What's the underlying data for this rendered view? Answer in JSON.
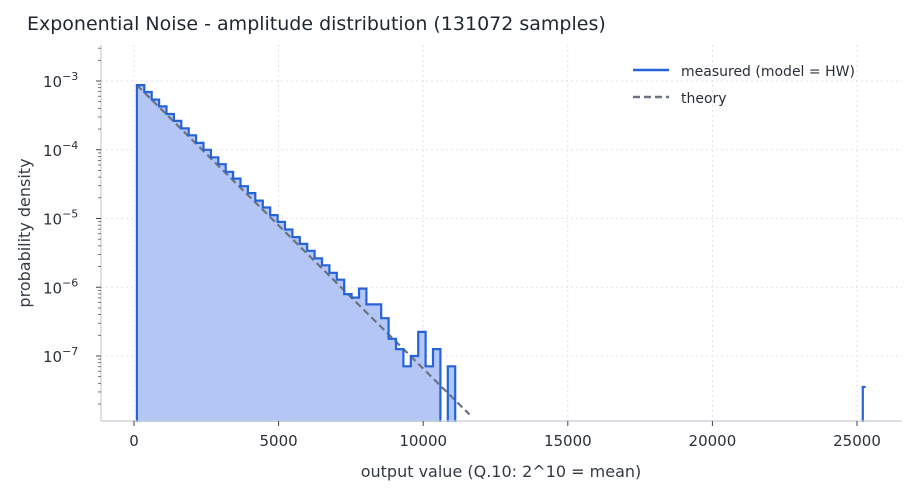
{
  "chart_data": {
    "type": "line",
    "title": "Exponential Noise - amplitude distribution (131072 samples)",
    "xlabel": "output value (Q.10: 2^10 = mean)",
    "ylabel": "probability density",
    "xlim": [
      -1200,
      26500
    ],
    "ylim_log10": [
      -7.8,
      -2.5
    ],
    "yscale": "log",
    "grid": true,
    "legend_position": "top-right",
    "x_ticks": [
      0,
      5000,
      10000,
      15000,
      20000,
      25000
    ],
    "x_tick_labels": [
      "0",
      "5000",
      "10000",
      "15000",
      "20000",
      "25000"
    ],
    "y_ticks_log10": [
      -3,
      -4,
      -5,
      -6,
      -7
    ],
    "y_tick_labels": [
      {
        "base": "10",
        "exp": "−3"
      },
      {
        "base": "10",
        "exp": "−4"
      },
      {
        "base": "10",
        "exp": "−5"
      },
      {
        "base": "10",
        "exp": "−6"
      },
      {
        "base": "10",
        "exp": "−7"
      }
    ],
    "colors": {
      "measured": "#2563d9",
      "fill": "#b4c6f6",
      "theory": "#6b7280"
    },
    "series": [
      {
        "name": "measured (model = HW)",
        "style": "step",
        "bin_edges": [
          100,
          356,
          612,
          868,
          1124,
          1380,
          1636,
          1892,
          2148,
          2404,
          2660,
          2916,
          3172,
          3428,
          3684,
          3940,
          4196,
          4452,
          4708,
          4964,
          5220,
          5476,
          5732,
          5988,
          6244,
          6500,
          6756,
          7012,
          7268,
          7524,
          7780,
          8036,
          8292,
          8548,
          8804,
          9060,
          9316,
          9572,
          9828,
          10084,
          10340,
          10596,
          10852,
          11108
        ],
        "log10_density": [
          -3.06,
          -3.16,
          -3.27,
          -3.37,
          -3.48,
          -3.58,
          -3.69,
          -3.79,
          -3.9,
          -4.0,
          -4.11,
          -4.21,
          -4.32,
          -4.42,
          -4.53,
          -4.63,
          -4.74,
          -4.84,
          -4.95,
          -5.05,
          -5.16,
          -5.27,
          -5.37,
          -5.47,
          -5.58,
          -5.68,
          -5.79,
          -5.89,
          -6.1,
          -6.15,
          -6.02,
          -6.25,
          -6.25,
          -6.45,
          -6.75,
          -6.9,
          -7.15,
          -7.0,
          -6.65,
          -7.15,
          -6.9,
          null,
          -7.15,
          null
        ],
        "outlier": {
          "x_start": 25200,
          "x_end": 25300,
          "log10_density": -7.45
        }
      },
      {
        "name": "theory",
        "style": "dashed",
        "x": [
          100,
          11600
        ],
        "log10_density": [
          -3.06,
          -7.85
        ]
      }
    ]
  }
}
